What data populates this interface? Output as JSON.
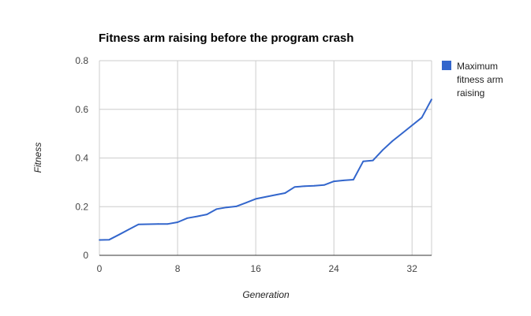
{
  "chart_data": {
    "type": "line",
    "title": "Fitness arm raising before the program crash",
    "xlabel": "Generation",
    "ylabel": "Fitness",
    "xlim": [
      0,
      34
    ],
    "ylim": [
      0,
      0.8
    ],
    "x_ticks": [
      "0",
      "8",
      "16",
      "24",
      "32"
    ],
    "y_ticks": [
      "0",
      "0.2",
      "0.4",
      "0.6",
      "0.8"
    ],
    "grid": true,
    "legend_position": "right",
    "series": [
      {
        "name": "Maximum fitness arm raising",
        "color": "#3366cc",
        "x": [
          0,
          1,
          2,
          3,
          4,
          5,
          6,
          7,
          8,
          9,
          10,
          11,
          12,
          13,
          14,
          15,
          16,
          17,
          18,
          19,
          20,
          21,
          22,
          23,
          24,
          25,
          26,
          27,
          28,
          29,
          30,
          31,
          32,
          33,
          34
        ],
        "y": [
          0.063,
          0.064,
          0.085,
          0.106,
          0.127,
          0.128,
          0.129,
          0.129,
          0.136,
          0.153,
          0.16,
          0.168,
          0.19,
          0.197,
          0.201,
          0.216,
          0.232,
          0.24,
          0.248,
          0.256,
          0.281,
          0.284,
          0.286,
          0.289,
          0.304,
          0.308,
          0.311,
          0.386,
          0.39,
          0.433,
          0.47,
          0.502,
          0.534,
          0.566,
          0.641
        ]
      }
    ]
  }
}
